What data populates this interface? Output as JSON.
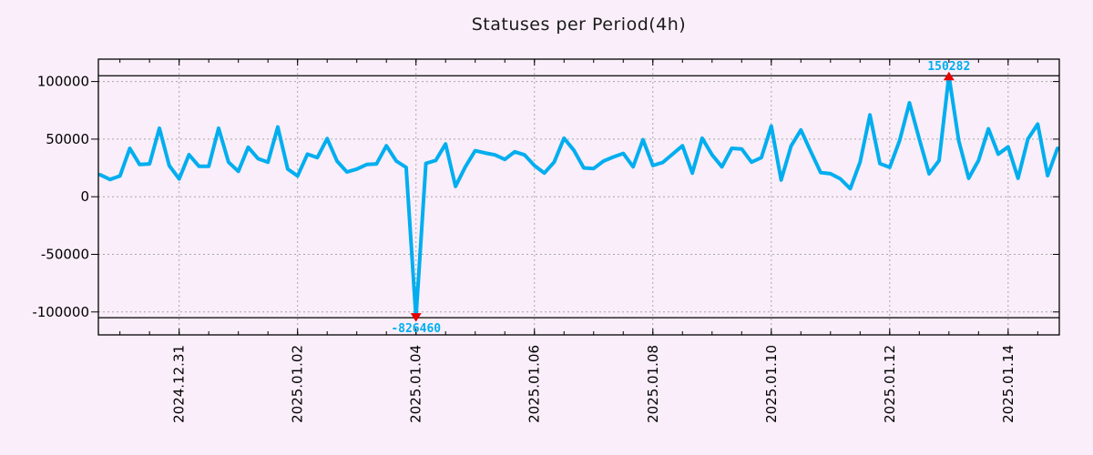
{
  "header": {
    "title": "Statuses per Period(4h)"
  },
  "chart_data": {
    "type": "line",
    "title": "Statuses per Period(4h)",
    "series_name": "statuses",
    "x_step_hours": 4,
    "categories": [
      "2024.12.29 16:00",
      "2024.12.29 20:00",
      "2024.12.30 00:00",
      "2024.12.30 04:00",
      "2024.12.30 08:00",
      "2024.12.30 12:00",
      "2024.12.30 16:00",
      "2024.12.30 20:00",
      "2024.12.31 00:00",
      "2024.12.31 04:00",
      "2024.12.31 08:00",
      "2024.12.31 12:00",
      "2024.12.31 16:00",
      "2024.12.31 20:00",
      "2025.01.01 00:00",
      "2025.01.01 04:00",
      "2025.01.01 08:00",
      "2025.01.01 12:00",
      "2025.01.01 16:00",
      "2025.01.01 20:00",
      "2025.01.02 00:00",
      "2025.01.02 04:00",
      "2025.01.02 08:00",
      "2025.01.02 12:00",
      "2025.01.02 16:00",
      "2025.01.02 20:00",
      "2025.01.03 00:00",
      "2025.01.03 04:00",
      "2025.01.03 08:00",
      "2025.01.03 12:00",
      "2025.01.03 16:00",
      "2025.01.03 20:00",
      "2025.01.04 00:00",
      "2025.01.04 04:00",
      "2025.01.04 08:00",
      "2025.01.04 12:00",
      "2025.01.04 16:00",
      "2025.01.04 20:00",
      "2025.01.05 00:00",
      "2025.01.05 04:00",
      "2025.01.05 08:00",
      "2025.01.05 12:00",
      "2025.01.05 16:00",
      "2025.01.05 20:00",
      "2025.01.06 00:00",
      "2025.01.06 04:00",
      "2025.01.06 08:00",
      "2025.01.06 12:00",
      "2025.01.06 16:00",
      "2025.01.06 20:00",
      "2025.01.07 00:00",
      "2025.01.07 04:00",
      "2025.01.07 08:00",
      "2025.01.07 12:00",
      "2025.01.07 16:00",
      "2025.01.07 20:00",
      "2025.01.08 00:00",
      "2025.01.08 04:00",
      "2025.01.08 08:00",
      "2025.01.08 12:00",
      "2025.01.08 16:00",
      "2025.01.08 20:00",
      "2025.01.09 00:00",
      "2025.01.09 04:00",
      "2025.01.09 08:00",
      "2025.01.09 12:00",
      "2025.01.09 16:00",
      "2025.01.09 20:00",
      "2025.01.10 00:00",
      "2025.01.10 04:00",
      "2025.01.10 08:00",
      "2025.01.10 12:00",
      "2025.01.10 16:00",
      "2025.01.10 20:00",
      "2025.01.11 00:00",
      "2025.01.11 04:00",
      "2025.01.11 08:00",
      "2025.01.11 12:00",
      "2025.01.11 16:00",
      "2025.01.11 20:00",
      "2025.01.12 00:00",
      "2025.01.12 04:00",
      "2025.01.12 08:00",
      "2025.01.12 12:00",
      "2025.01.12 16:00",
      "2025.01.12 20:00",
      "2025.01.13 00:00",
      "2025.01.13 04:00",
      "2025.01.13 08:00",
      "2025.01.13 12:00",
      "2025.01.13 16:00",
      "2025.01.13 20:00",
      "2025.01.14 00:00",
      "2025.01.14 04:00",
      "2025.01.14 08:00",
      "2025.01.14 12:00",
      "2025.01.14 16:00",
      "2025.01.14 20:00"
    ],
    "values": [
      19000,
      15000,
      18000,
      42000,
      28000,
      28500,
      59500,
      27000,
      15500,
      36500,
      26500,
      26500,
      59500,
      30000,
      22000,
      43000,
      33000,
      30000,
      60500,
      24000,
      18000,
      37000,
      34000,
      50500,
      31000,
      21500,
      24000,
      28000,
      28500,
      44200,
      31000,
      25500,
      -826460,
      29000,
      31500,
      45800,
      9000,
      26000,
      40000,
      38000,
      36300,
      32400,
      39000,
      36300,
      27100,
      20500,
      30000,
      50800,
      40300,
      25000,
      24500,
      31000,
      34500,
      37600,
      26000,
      49500,
      27100,
      29800,
      37000,
      44200,
      20500,
      50800,
      36300,
      26000,
      42000,
      41500,
      30000,
      34000,
      61400,
      14500,
      44000,
      58000,
      39300,
      21000,
      20000,
      15600,
      7000,
      30100,
      71000,
      28800,
      25500,
      48600,
      81500,
      50000,
      20000,
      31400,
      150282,
      48600,
      16000,
      31400,
      59000,
      37000,
      43300,
      16000,
      50000,
      63000,
      18300,
      42000
    ],
    "ylim": [
      -105000,
      105000
    ],
    "clamp_value": 105000,
    "ytick_values": [
      100000,
      50000,
      0,
      -50000,
      -100000
    ],
    "ytick_labels": [
      "100000",
      "50000",
      "0",
      "-50000",
      "-100000"
    ],
    "xtick_labels": [
      "2024.12.31",
      "2025.01.02",
      "2025.01.04",
      "2025.01.06",
      "2025.01.08",
      "2025.01.10",
      "2025.01.12",
      "2025.01.14"
    ],
    "xtick_major_index_start": 8,
    "xtick_major_index_step": 12,
    "xtick_minor_index_start": 2,
    "xtick_minor_index_step": 3,
    "grid": true,
    "legend": "none",
    "annotations": [
      {
        "type": "max",
        "index": 86,
        "value": 150282,
        "label": "150282"
      },
      {
        "type": "min",
        "index": 32,
        "value": -826460,
        "label": "-826460"
      }
    ],
    "colors": {
      "line": "#00aeef",
      "annotation_text": "#00aeef",
      "marker": "#e60000",
      "background": "#f9eef9",
      "grid": "#a8a8a8",
      "axis": "#000000",
      "title": "#1a1a1a"
    }
  }
}
